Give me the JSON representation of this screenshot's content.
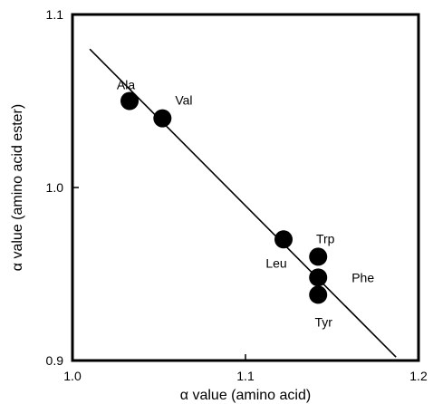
{
  "chart_data": {
    "type": "scatter",
    "xlabel": "α value (amino acid)",
    "ylabel": "α value (amino acid ester)",
    "xlim": [
      1.0,
      1.2
    ],
    "ylim": [
      0.9,
      1.1
    ],
    "xticks": [
      "1.0",
      "1.1",
      "1.2"
    ],
    "yticks": [
      "1.1",
      "1.0",
      "0.9"
    ],
    "grid": false,
    "points": [
      {
        "label": "Ala",
        "x": 1.033,
        "y": 1.05
      },
      {
        "label": "Val",
        "x": 1.052,
        "y": 1.04
      },
      {
        "label": "Leu",
        "x": 1.122,
        "y": 0.97
      },
      {
        "label": "Trp",
        "x": 1.142,
        "y": 0.96
      },
      {
        "label": "Phe",
        "x": 1.142,
        "y": 0.948
      },
      {
        "label": "Tyr",
        "x": 1.142,
        "y": 0.938
      }
    ],
    "fit_line": {
      "x": [
        1.01,
        1.187
      ],
      "y": [
        1.08,
        0.902
      ]
    },
    "colors": {
      "points": "#000000",
      "line": "#000000",
      "axes": "#000000"
    }
  }
}
